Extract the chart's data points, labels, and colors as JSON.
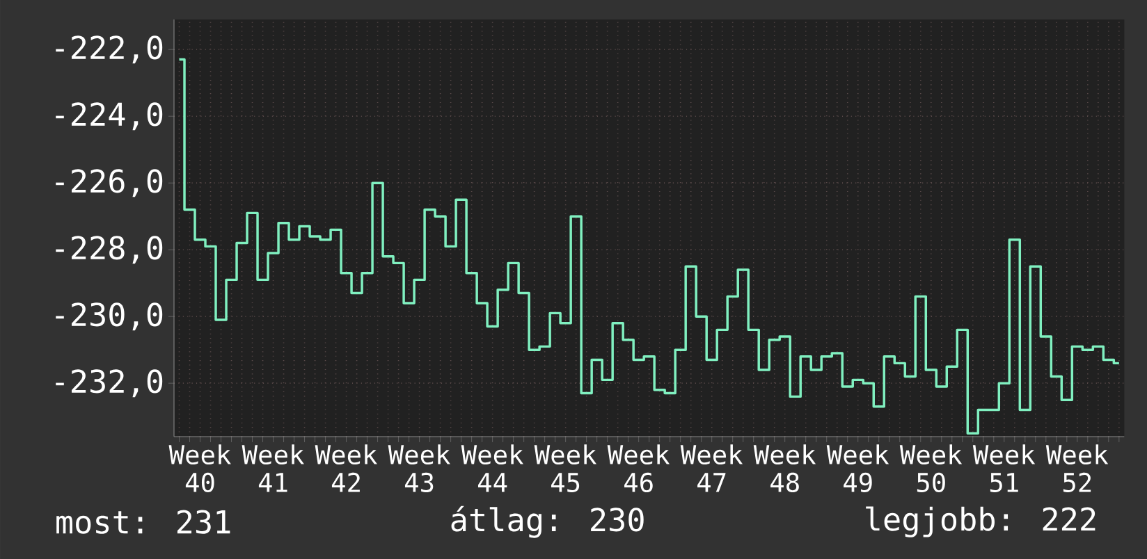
{
  "chart_data": {
    "type": "step",
    "categories": [
      null,
      null,
      "Week 40",
      null,
      null,
      null,
      null,
      null,
      null,
      "Week 41",
      null,
      null,
      null,
      null,
      null,
      null,
      "Week 42",
      null,
      null,
      null,
      null,
      null,
      null,
      "Week 43",
      null,
      null,
      null,
      null,
      null,
      null,
      "Week 44",
      null,
      null,
      null,
      null,
      null,
      null,
      "Week 45",
      null,
      null,
      null,
      null,
      null,
      null,
      "Week 46",
      null,
      null,
      null,
      null,
      null,
      null,
      "Week 47",
      null,
      null,
      null,
      null,
      null,
      null,
      "Week 48",
      null,
      null,
      null,
      null,
      null,
      null,
      "Week 49",
      null,
      null,
      null,
      null,
      null,
      null,
      "Week 50",
      null,
      null,
      null,
      null,
      null,
      null,
      "Week 51",
      null,
      null,
      null,
      null,
      null,
      null,
      "Week 52",
      null,
      null,
      null,
      null
    ],
    "series": [
      {
        "color": "#80f0c0",
        "values": [
          -222.3,
          -226.8,
          -227.7,
          -227.9,
          -230.1,
          -228.9,
          -227.8,
          -226.9,
          -228.9,
          -228.1,
          -227.2,
          -227.7,
          -227.3,
          -227.6,
          -227.7,
          -227.4,
          -228.7,
          -229.3,
          -228.7,
          -226.0,
          -228.2,
          -228.4,
          -229.6,
          -228.9,
          -226.8,
          -227.0,
          -227.9,
          -226.5,
          -228.7,
          -229.6,
          -230.3,
          -229.2,
          -228.4,
          -229.3,
          -231.0,
          -230.9,
          -229.9,
          -230.2,
          -227.0,
          -232.3,
          -231.3,
          -231.9,
          -230.2,
          -230.7,
          -231.3,
          -231.2,
          -232.2,
          -232.3,
          -231.0,
          -228.5,
          -230.0,
          -231.3,
          -230.4,
          -229.4,
          -228.6,
          -230.4,
          -231.6,
          -230.7,
          -230.6,
          -232.4,
          -231.2,
          -231.6,
          -231.2,
          -231.1,
          -232.1,
          -231.9,
          -232.0,
          -232.7,
          -231.2,
          -231.4,
          -231.8,
          -229.4,
          -231.6,
          -232.1,
          -231.5,
          -230.4,
          -233.5,
          -232.8,
          -232.8,
          -232.0,
          -227.7,
          -232.8,
          -228.5,
          -230.6,
          -231.8,
          -232.5,
          -230.9,
          -231.0,
          -230.9,
          -231.3,
          -231.4
        ]
      }
    ],
    "ylim": [
      -233.6,
      -221.1
    ],
    "yticks": [
      {
        "value": -232,
        "label": "-232,0"
      },
      {
        "value": -230,
        "label": "-230,0"
      },
      {
        "value": -228,
        "label": "-228,0"
      },
      {
        "value": -226,
        "label": "-226,0"
      },
      {
        "value": -224,
        "label": "-224,0"
      },
      {
        "value": -222,
        "label": "-222,0"
      }
    ],
    "grid": true,
    "annotations": [
      "most: 231",
      "átlag: 230",
      "legjobb: 222"
    ]
  }
}
